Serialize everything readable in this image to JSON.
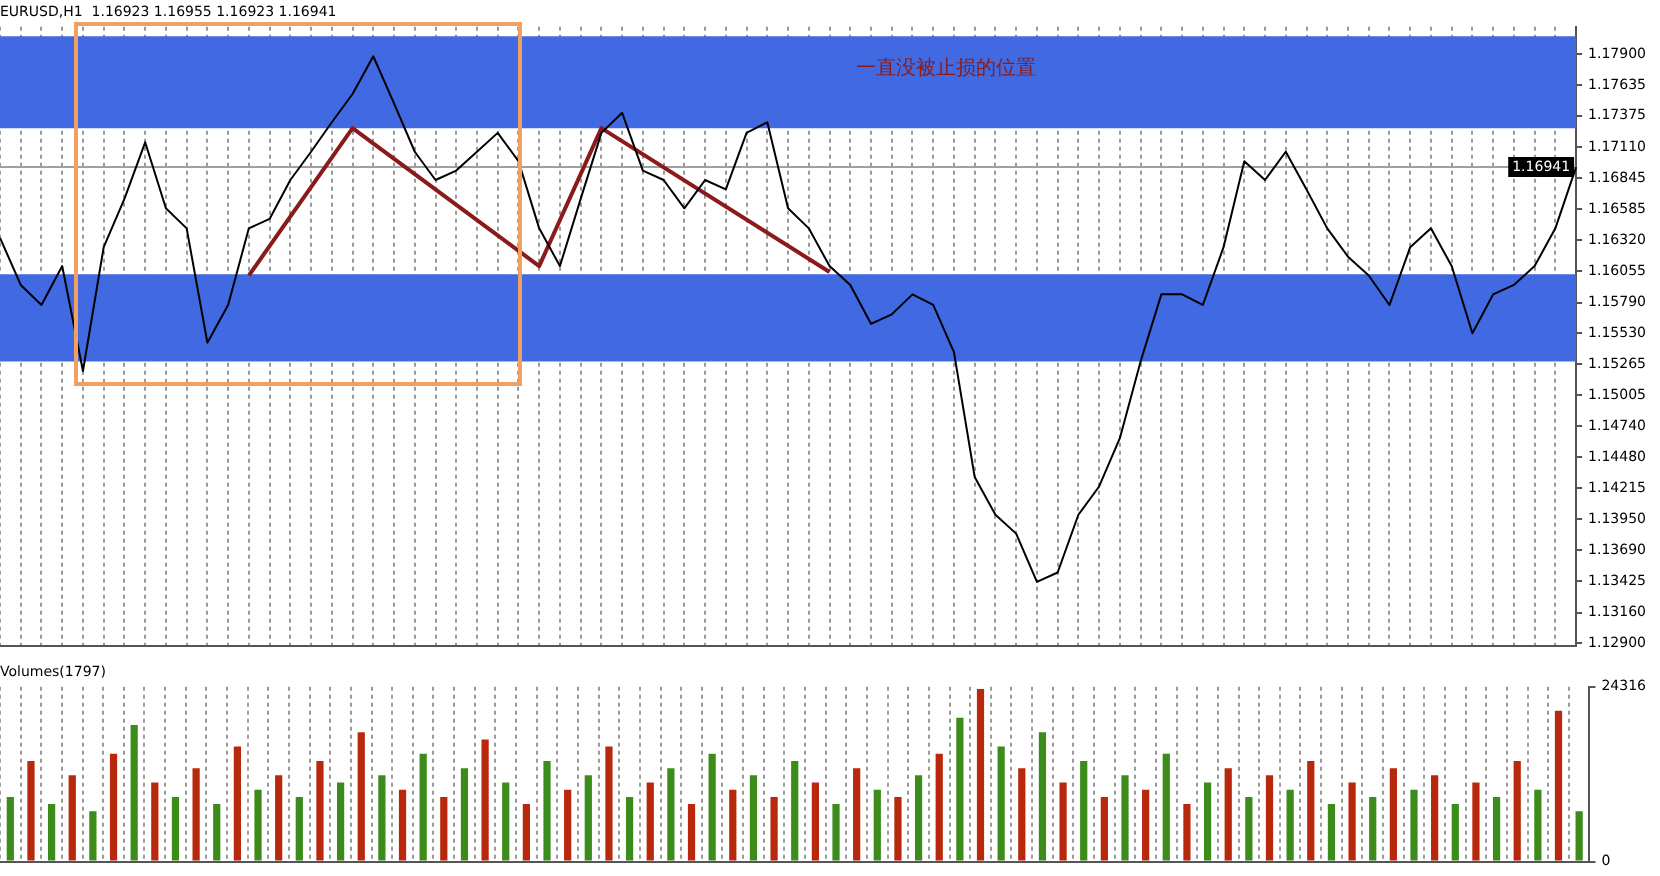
{
  "chart_data": [
    {
      "type": "line",
      "title": "EURUSD,H1  1.16923 1.16955 1.16923 1.16941",
      "categories": [
        null,
        null,
        null,
        null,
        null,
        null,
        null,
        null,
        null,
        null,
        null,
        null,
        null,
        null,
        null,
        null,
        null,
        null,
        null,
        null,
        null,
        null,
        null,
        null,
        null,
        null,
        null,
        null,
        null,
        null,
        null,
        null,
        null,
        null,
        null,
        null,
        null,
        null,
        null,
        null,
        null,
        null,
        null,
        null,
        null,
        null,
        null,
        null,
        null,
        null,
        null,
        null,
        null,
        null,
        null,
        null,
        null,
        null,
        null,
        null,
        null,
        null,
        null,
        null,
        null,
        null,
        null,
        null,
        null,
        null,
        null,
        null,
        null,
        null,
        null,
        null,
        null
      ],
      "series": [
        {
          "color": "#000000",
          "values": [
            1.1634,
            1.1594,
            1.1577,
            1.161,
            1.1521,
            1.1626,
            1.1667,
            1.1715,
            1.1659,
            1.1642,
            1.1545,
            1.1577,
            1.1642,
            1.165,
            1.1683,
            1.1707,
            1.1732,
            1.1756,
            1.1788,
            1.1748,
            1.1707,
            1.1683,
            1.1691,
            1.1707,
            1.1723,
            1.1699,
            1.1642,
            1.161,
            1.1667,
            1.1723,
            1.174,
            1.1691,
            1.1683,
            1.1659,
            1.1683,
            1.1675,
            1.1723,
            1.1732,
            1.1659,
            1.1642,
            1.161,
            1.1594,
            1.1561,
            1.1569,
            1.1586,
            1.1577,
            1.1537,
            1.1431,
            1.1399,
            1.1383,
            1.1342,
            1.135,
            1.1399,
            1.1423,
            1.1464,
            1.1529,
            1.1586,
            1.1586,
            1.1577,
            1.1626,
            1.1699,
            1.1683,
            1.1707,
            1.1675,
            1.1642,
            1.1618,
            1.1602,
            1.1577,
            1.1626,
            1.1642,
            1.161,
            1.1553,
            1.1586,
            1.1594,
            1.161,
            1.1642,
            1.1694
          ]
        },
        {
          "type": "line",
          "color": "#8b1a1a",
          "values": [
            null,
            null,
            null,
            null,
            null,
            null,
            null,
            null,
            null,
            null,
            null,
            null,
            1.1602,
            null,
            null,
            null,
            null,
            1.1727,
            null,
            null,
            null,
            null,
            null,
            null,
            null,
            null,
            1.161,
            null,
            null,
            1.1727,
            null,
            null,
            null,
            null,
            null,
            null,
            null,
            null,
            null,
            null,
            1.1605,
            null,
            null,
            null,
            null,
            null,
            null,
            null,
            null,
            null,
            null,
            null,
            null,
            null,
            null,
            null,
            null,
            null,
            null,
            null,
            null,
            null,
            null,
            null,
            null,
            null,
            null,
            null,
            null,
            null,
            null,
            null,
            null,
            null,
            null,
            null,
            null
          ]
        }
      ],
      "ylim": [
        1.1288,
        1.1813
      ],
      "yticks": [
        {
          "value": 1.179,
          "label": "1.17900"
        },
        {
          "value": 1.17635,
          "label": "1.17635"
        },
        {
          "value": 1.17375,
          "label": "1.17375"
        },
        {
          "value": 1.1711,
          "label": "1.17110"
        },
        {
          "value": 1.16845,
          "label": "1.16845"
        },
        {
          "value": 1.16585,
          "label": "1.16585"
        },
        {
          "value": 1.1632,
          "label": "1.16320"
        },
        {
          "value": 1.16055,
          "label": "1.16055"
        },
        {
          "value": 1.1579,
          "label": "1.15790"
        },
        {
          "value": 1.1553,
          "label": "1.15530"
        },
        {
          "value": 1.15265,
          "label": "1.15265"
        },
        {
          "value": 1.15005,
          "label": "1.15005"
        },
        {
          "value": 1.1474,
          "label": "1.14740"
        },
        {
          "value": 1.1448,
          "label": "1.14480"
        },
        {
          "value": 1.14215,
          "label": "1.14215"
        },
        {
          "value": 1.1395,
          "label": "1.13950"
        },
        {
          "value": 1.1369,
          "label": "1.13690"
        },
        {
          "value": 1.13425,
          "label": "1.13425"
        },
        {
          "value": 1.1316,
          "label": "1.13160"
        },
        {
          "value": 1.129,
          "label": "1.12900"
        }
      ],
      "bands": [
        {
          "axis": "y",
          "from": 1.1727,
          "to": 1.1805,
          "color": "#4169e1",
          "label": "一直没被止损的位置"
        },
        {
          "axis": "y",
          "from": 1.1529,
          "to": 1.1603,
          "color": "#4169e1"
        }
      ],
      "ref_lines": [
        {
          "axis": "y",
          "value": 1.16941,
          "label": "1.16941",
          "color": "#a0a0a0"
        }
      ],
      "grid": "x",
      "marker": "none",
      "legend": false,
      "tick_labels": "y"
    },
    {
      "type": "bar",
      "title": "Volumes(1797)",
      "categories": [
        null,
        null,
        null,
        null,
        null,
        null,
        null,
        null,
        null,
        null,
        null,
        null,
        null,
        null,
        null,
        null,
        null,
        null,
        null,
        null,
        null,
        null,
        null,
        null,
        null,
        null,
        null,
        null,
        null,
        null,
        null,
        null,
        null,
        null,
        null,
        null,
        null,
        null,
        null,
        null,
        null,
        null,
        null,
        null,
        null,
        null,
        null,
        null,
        null,
        null,
        null,
        null,
        null,
        null,
        null,
        null,
        null,
        null,
        null,
        null,
        null,
        null,
        null,
        null,
        null,
        null,
        null,
        null,
        null,
        null,
        null,
        null,
        null,
        null,
        null,
        null,
        null
      ],
      "values": [
        9000,
        14000,
        8000,
        12000,
        7000,
        15000,
        19000,
        11000,
        9000,
        13000,
        8000,
        16000,
        10000,
        12000,
        9000,
        14000,
        11000,
        18000,
        12000,
        10000,
        15000,
        9000,
        13000,
        17000,
        11000,
        8000,
        14000,
        10000,
        12000,
        16000,
        9000,
        11000,
        13000,
        8000,
        15000,
        10000,
        12000,
        9000,
        14000,
        11000,
        8000,
        13000,
        10000,
        9000,
        12000,
        15000,
        20000,
        24000,
        16000,
        13000,
        18000,
        11000,
        14000,
        9000,
        12000,
        10000,
        15000,
        8000,
        11000,
        13000,
        9000,
        12000,
        10000,
        14000,
        8000,
        11000,
        9000,
        13000,
        10000,
        12000,
        8000,
        11000,
        9000,
        14000,
        10000,
        21000,
        7000
      ],
      "colors": [
        "#3c8c1c",
        "#b8280c",
        "#3c8c1c",
        "#b8280c",
        "#3c8c1c",
        "#b8280c",
        "#3c8c1c",
        "#b8280c",
        "#3c8c1c",
        "#b8280c",
        "#3c8c1c",
        "#b8280c",
        "#3c8c1c",
        "#b8280c",
        "#3c8c1c",
        "#b8280c",
        "#3c8c1c",
        "#b8280c",
        "#3c8c1c",
        "#b8280c",
        "#3c8c1c",
        "#b8280c",
        "#3c8c1c",
        "#b8280c",
        "#3c8c1c",
        "#b8280c",
        "#3c8c1c",
        "#b8280c",
        "#3c8c1c",
        "#b8280c",
        "#3c8c1c",
        "#b8280c",
        "#3c8c1c",
        "#b8280c",
        "#3c8c1c",
        "#b8280c",
        "#3c8c1c",
        "#b8280c",
        "#3c8c1c",
        "#b8280c",
        "#3c8c1c",
        "#b8280c",
        "#3c8c1c",
        "#b8280c",
        "#3c8c1c",
        "#b8280c",
        "#3c8c1c",
        "#b8280c",
        "#3c8c1c",
        "#b8280c",
        "#3c8c1c",
        "#b8280c",
        "#3c8c1c",
        "#b8280c",
        "#3c8c1c",
        "#b8280c",
        "#3c8c1c",
        "#b8280c",
        "#3c8c1c",
        "#b8280c",
        "#3c8c1c",
        "#b8280c",
        "#3c8c1c",
        "#b8280c",
        "#3c8c1c",
        "#b8280c",
        "#3c8c1c",
        "#b8280c",
        "#3c8c1c",
        "#b8280c",
        "#3c8c1c",
        "#b8280c",
        "#3c8c1c",
        "#b8280c",
        "#3c8c1c",
        "#b8280c",
        "#3c8c1c"
      ],
      "ylim": [
        0,
        24316
      ],
      "yticks": [
        0,
        24316
      ],
      "grid": "x",
      "legend": false,
      "tick_labels": "y"
    }
  ]
}
